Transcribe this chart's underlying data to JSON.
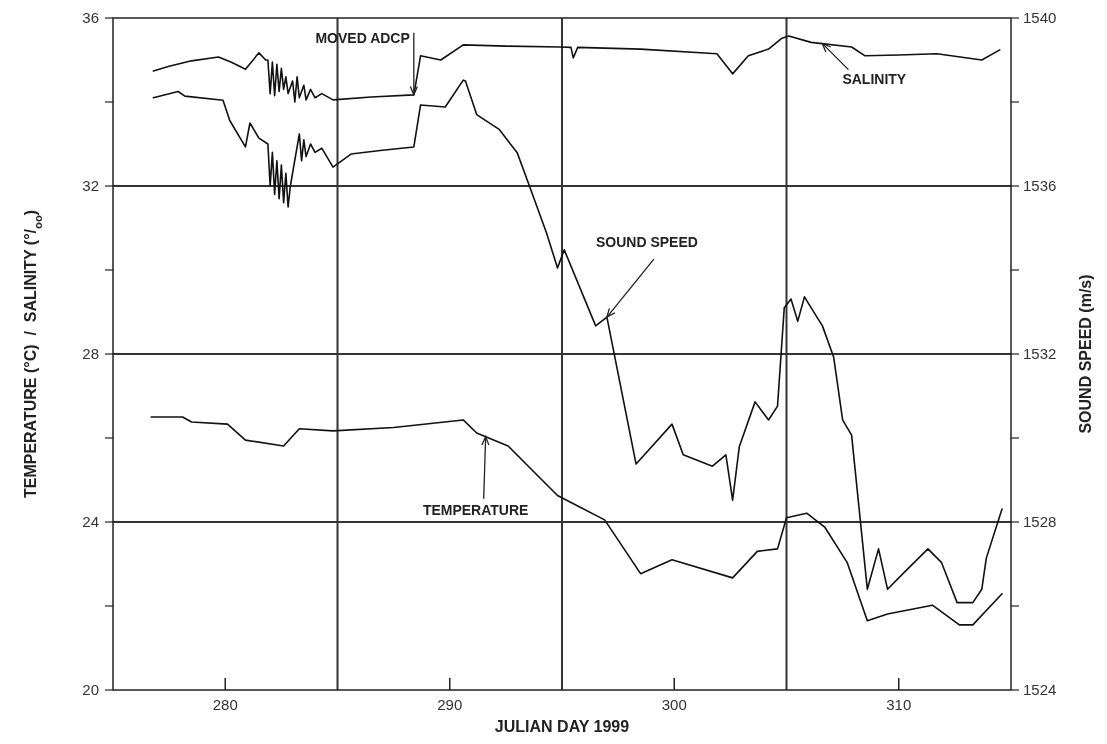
{
  "chart_data": {
    "type": "line",
    "xlabel": "JULIAN DAY 1999",
    "ylabel": "TEMPERATURE (°C)  /  SALINITY (°/$_{oo}$)",
    "y2label": "SOUND SPEED (m/s)",
    "xlim": [
      275,
      315
    ],
    "xticks": [
      280,
      290,
      300,
      310
    ],
    "ylim": [
      20,
      36
    ],
    "yticks": [
      20,
      {
        "value": 22,
        "label": null
      },
      24,
      {
        "value": 26,
        "label": null
      },
      28,
      {
        "value": 30,
        "label": null
      },
      32,
      {
        "value": 34,
        "label": null
      },
      36
    ],
    "y2lim": [
      1524,
      1540
    ],
    "y2ticks": [
      1524,
      {
        "value": 1526,
        "label": null
      },
      1528,
      {
        "value": 1530,
        "label": null
      },
      1532,
      {
        "value": 1534,
        "label": null
      },
      1536,
      {
        "value": 1538,
        "label": null
      },
      1540
    ],
    "grid": false,
    "line_style": "solid",
    "marker": "none",
    "ref_lines": [
      {
        "axis": "x",
        "value": 285,
        "color": "#333333"
      },
      {
        "axis": "x",
        "value": 295,
        "color": "#333333"
      },
      {
        "axis": "x",
        "value": 305,
        "color": "#333333"
      },
      {
        "axis": "y",
        "value": 24,
        "color": "#333333"
      },
      {
        "axis": "y",
        "value": 28,
        "color": "#333333"
      },
      {
        "axis": "y",
        "value": 32,
        "color": "#333333"
      }
    ],
    "annotations": [
      {
        "text": "MOVED ADCP",
        "x": 288.4,
        "y": 34.17
      },
      {
        "text": "SALINITY",
        "x": 306.6,
        "y": 35.39
      },
      {
        "text": "SOUND SPEED",
        "x": 297.0,
        "y": 28.88
      },
      {
        "text": "TEMPERATURE",
        "x": 291.6,
        "y": 26.03
      }
    ],
    "series": [
      {
        "color": "#111111",
        "x": [
          276.8,
          277.5,
          278.5,
          279.7,
          280.3,
          280.9,
          281.5,
          281.8,
          281.9,
          282.0,
          282.1,
          282.2,
          282.3,
          282.4,
          282.5,
          282.6,
          282.7,
          282.8,
          283.0,
          283.1,
          283.2,
          283.3,
          283.5,
          283.6,
          283.8,
          284.0,
          284.3,
          284.8,
          286.5,
          288.4,
          288.7,
          289.6,
          290.6,
          292.5,
          294.9,
          295.4,
          295.5,
          295.7,
          298.5,
          301.9,
          302.6,
          303.3,
          304.2,
          304.8,
          305.1,
          306.1,
          307.9,
          308.5,
          310.0,
          311.7,
          313.7,
          314.5
        ],
        "values": [
          34.74,
          34.85,
          34.98,
          35.07,
          34.94,
          34.78,
          35.17,
          35.0,
          35.0,
          34.2,
          34.95,
          34.15,
          34.9,
          34.25,
          34.8,
          34.3,
          34.6,
          34.2,
          34.5,
          34.0,
          34.6,
          34.1,
          34.4,
          34.05,
          34.3,
          34.1,
          34.2,
          34.05,
          34.12,
          34.17,
          35.1,
          35.0,
          35.36,
          35.33,
          35.31,
          35.3,
          35.05,
          35.3,
          35.26,
          35.15,
          34.67,
          35.1,
          35.26,
          35.52,
          35.57,
          35.42,
          35.31,
          35.1,
          35.12,
          35.15,
          35.0,
          35.24
        ]
      },
      {
        "color": "#111111",
        "axis": "y2",
        "x": [
          276.8,
          277.9,
          278.2,
          279.9,
          280.2,
          280.9,
          281.1,
          281.5,
          281.9,
          282.0,
          282.1,
          282.2,
          282.3,
          282.4,
          282.5,
          282.6,
          282.7,
          282.8,
          282.9,
          283.3,
          283.4,
          283.5,
          283.6,
          283.8,
          284.0,
          284.3,
          284.8,
          285.6,
          287.0,
          288.4,
          288.7,
          289.8,
          290.6,
          290.7,
          291.2,
          292.2,
          292.7,
          293.0,
          293.5,
          294.3,
          294.8,
          295.1,
          296.5,
          297.0,
          298.3,
          299.9,
          300.4,
          301.7,
          302.3,
          302.6,
          302.9,
          303.6,
          304.2,
          304.6,
          304.9,
          305.2,
          305.5,
          305.8,
          306.1,
          306.6,
          307.1,
          307.5,
          307.9,
          308.6,
          309.1,
          309.5,
          310.3,
          311.3,
          311.9,
          312.6,
          313.3,
          313.7,
          313.9,
          314.6
        ],
        "values": [
          1538.1,
          1538.25,
          1538.14,
          1538.04,
          1537.56,
          1536.93,
          1537.5,
          1537.14,
          1537.0,
          1536.0,
          1536.8,
          1535.8,
          1536.6,
          1535.7,
          1536.5,
          1535.6,
          1536.3,
          1535.5,
          1536.0,
          1537.24,
          1536.6,
          1537.1,
          1536.7,
          1537.0,
          1536.8,
          1536.9,
          1536.45,
          1536.76,
          1536.85,
          1536.93,
          1537.93,
          1537.88,
          1538.52,
          1538.5,
          1537.7,
          1537.35,
          1537.0,
          1536.8,
          1536.07,
          1534.9,
          1534.05,
          1534.48,
          1532.67,
          1532.88,
          1529.38,
          1530.33,
          1529.6,
          1529.33,
          1529.6,
          1528.52,
          1529.8,
          1530.86,
          1530.43,
          1530.76,
          1533.1,
          1533.31,
          1532.78,
          1533.36,
          1533.1,
          1532.67,
          1531.93,
          1530.43,
          1530.07,
          1526.4,
          1527.36,
          1526.4,
          1526.83,
          1527.36,
          1527.04,
          1526.08,
          1526.08,
          1526.4,
          1527.14,
          1528.31
        ]
      },
      {
        "color": "#111111",
        "x": [
          276.7,
          278.1,
          278.5,
          280.1,
          280.9,
          282.6,
          283.3,
          284.8,
          287.5,
          290.6,
          291.2,
          292.6,
          294.8,
          296.9,
          298.5,
          299.9,
          302.6,
          303.7,
          304.6,
          305.0,
          305.9,
          306.7,
          307.7,
          308.6,
          309.5,
          311.5,
          312.7,
          313.3,
          314.6
        ],
        "values": [
          26.5,
          26.5,
          26.38,
          26.33,
          25.95,
          25.81,
          26.22,
          26.17,
          26.25,
          26.43,
          26.12,
          25.81,
          24.63,
          24.05,
          22.77,
          23.1,
          22.67,
          23.3,
          23.36,
          24.1,
          24.21,
          23.88,
          23.04,
          21.65,
          21.81,
          22.02,
          21.55,
          21.55,
          22.29
        ]
      }
    ]
  }
}
